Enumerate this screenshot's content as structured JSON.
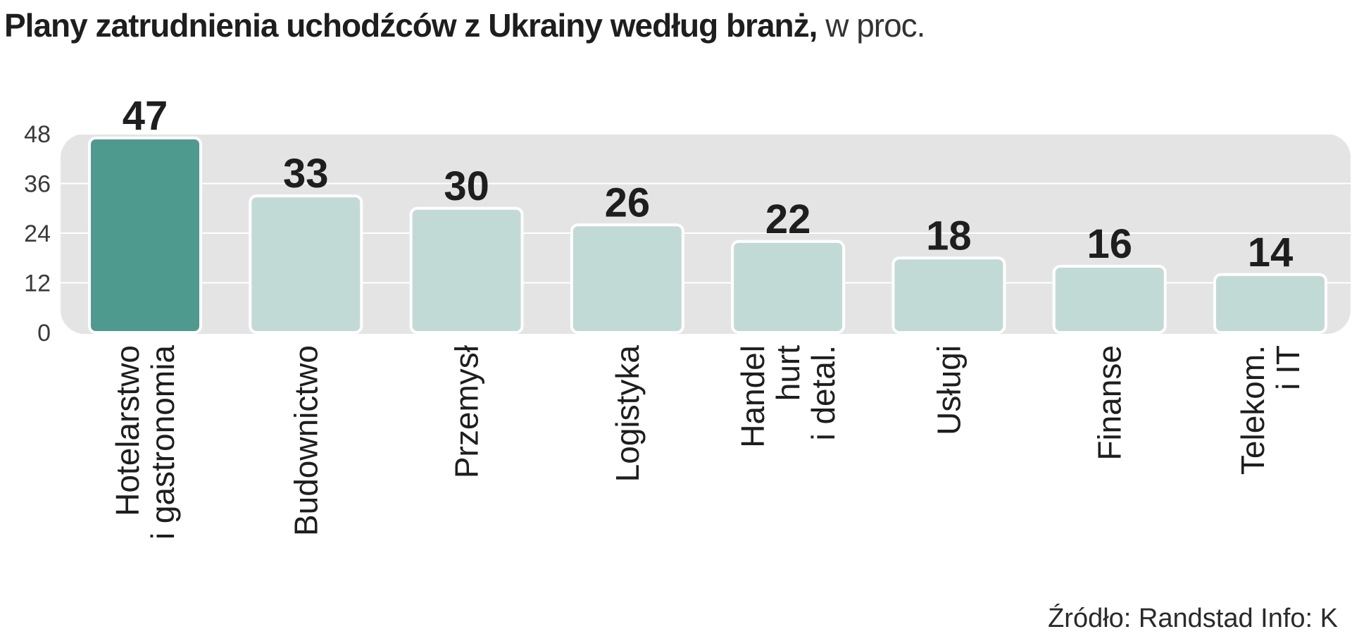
{
  "title": {
    "main": "Plany zatrudnienia uchodźców z Ukrainy według branż,",
    "sub": " w proc."
  },
  "source": "Źródło: Randstad  Info: K",
  "colors": {
    "highlight": "#4f9a8e",
    "bar": "#c2dad6",
    "panel": "#e4e4e4",
    "grid": "#ffffff",
    "bar_outline": "#ffffff"
  },
  "chart_data": {
    "type": "bar",
    "categories": [
      [
        "Hotelarstwo",
        "i gastronomia"
      ],
      [
        "Budownictwo"
      ],
      [
        "Przemysł"
      ],
      [
        "Logistyka"
      ],
      [
        "Handel",
        "hurt",
        "i detal."
      ],
      [
        "Usługi"
      ],
      [
        "Finanse"
      ],
      [
        "Telekom.",
        "i IT"
      ]
    ],
    "values": [
      47,
      33,
      30,
      26,
      22,
      18,
      16,
      14
    ],
    "highlight_index": 0,
    "yticks": [
      0,
      12,
      24,
      36,
      48
    ],
    "ylim": [
      0,
      48
    ],
    "grid": true,
    "xlabel": "",
    "ylabel": ""
  }
}
